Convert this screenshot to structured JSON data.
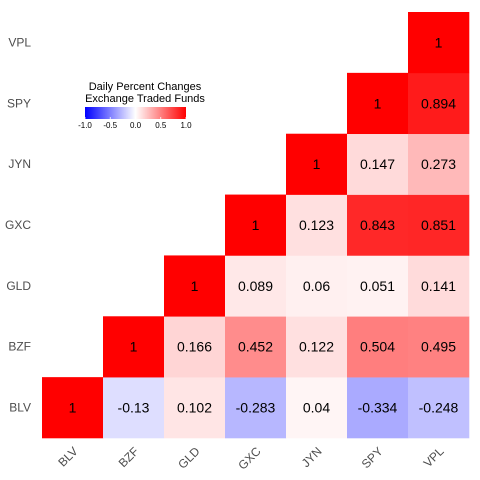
{
  "chart_data": {
    "type": "heatmap",
    "title": "",
    "xlabel": "",
    "ylabel": "",
    "categories": [
      "BLV",
      "BZF",
      "GLD",
      "GXC",
      "JYN",
      "SPY",
      "VPL"
    ],
    "matrix": [
      [
        1,
        null,
        null,
        null,
        null,
        null,
        null
      ],
      [
        -0.13,
        1,
        null,
        null,
        null,
        null,
        null
      ],
      [
        0.102,
        0.166,
        1,
        null,
        null,
        null,
        null
      ],
      [
        -0.283,
        0.452,
        0.089,
        1,
        null,
        null,
        null
      ],
      [
        0.04,
        0.122,
        0.06,
        0.123,
        1,
        null,
        null
      ],
      [
        -0.334,
        0.504,
        0.051,
        0.843,
        0.147,
        1,
        null
      ],
      [
        -0.248,
        0.495,
        0.141,
        0.851,
        0.273,
        0.894,
        1
      ]
    ],
    "legend": {
      "title_line1": "Daily Percent Changes",
      "title_line2": "Exchange Traded Funds",
      "ticks": [
        "-1.0",
        "-0.5",
        "0.0",
        "0.5",
        "1.0"
      ],
      "tick_values": [
        -1,
        -0.5,
        0,
        0.5,
        1
      ],
      "range": [
        -1,
        1
      ],
      "placement": "top-left"
    },
    "colors": {
      "low": "#0000ff",
      "mid": "#ffffff",
      "high": "#ff0000"
    }
  }
}
